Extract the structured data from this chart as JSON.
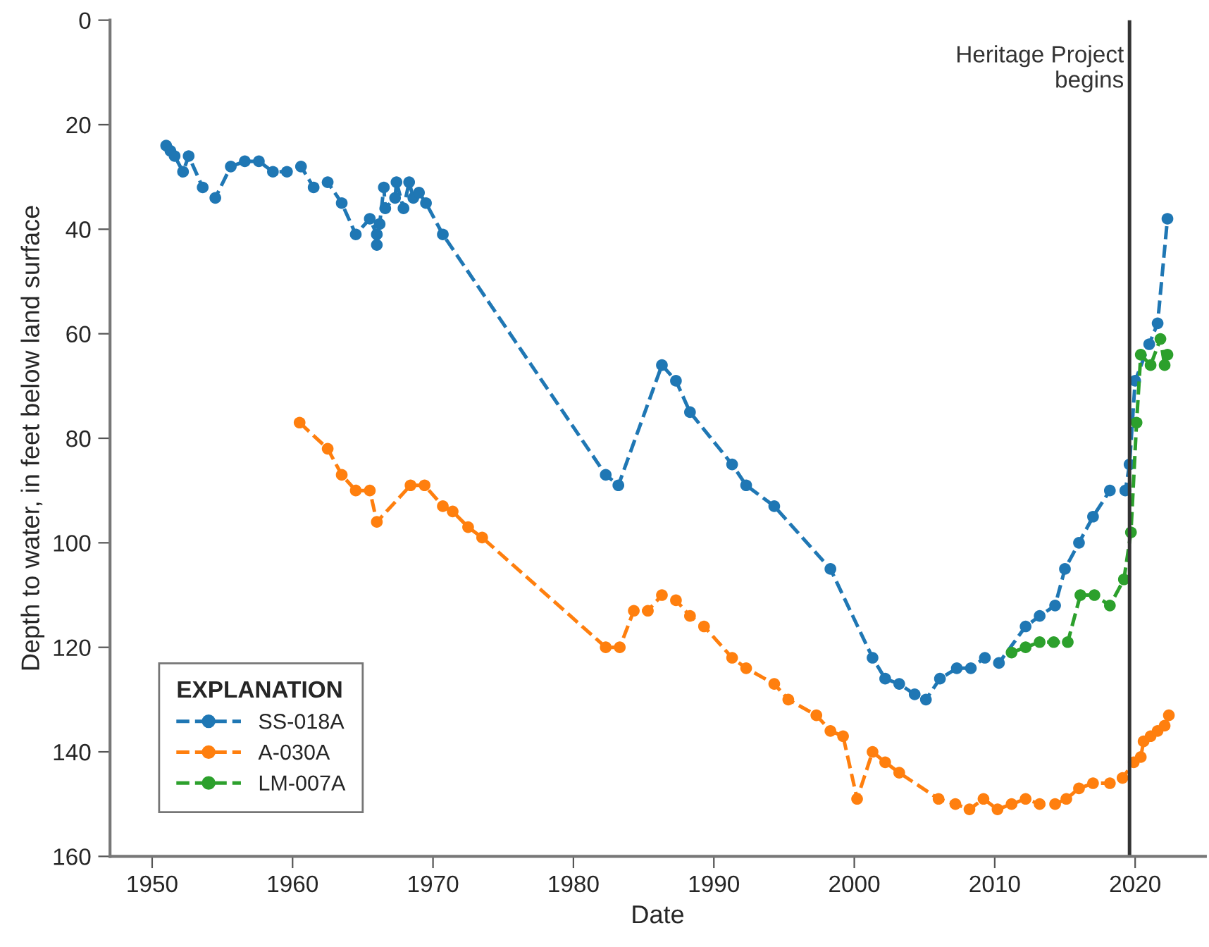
{
  "chart_data": {
    "type": "line",
    "xlabel": "Date",
    "ylabel": "Depth to water, in feet below land surface",
    "legend_title": "EXPLANATION",
    "legend": "bottom left",
    "grid": false,
    "marker": "circle",
    "line_style": "dashed",
    "xlim": [
      1947,
      2025
    ],
    "xticks": [
      1950,
      1960,
      1970,
      1980,
      1990,
      2000,
      2010,
      2020
    ],
    "ylim": [
      160,
      0
    ],
    "yticks": [
      0,
      20,
      40,
      60,
      80,
      100,
      120,
      140,
      160
    ],
    "ref_lines": [
      {
        "axis": "x",
        "value": 2019.6,
        "label": "Heritage Project\nbegins",
        "color": "#333333",
        "line_style": "solid"
      }
    ],
    "series": [
      {
        "name": "SS-018A",
        "color": "#1f77b4",
        "x": [
          1951.0,
          1951.3,
          1951.6,
          1952.2,
          1952.6,
          1953.6,
          1954.5,
          1955.6,
          1956.6,
          1957.6,
          1958.6,
          1959.6,
          1960.6,
          1961.5,
          1962.5,
          1963.5,
          1964.5,
          1965.5,
          1966.0,
          1966.0,
          1966.2,
          1966.5,
          1966.6,
          1967.3,
          1967.4,
          1967.9,
          1968.3,
          1968.6,
          1969.0,
          1969.5,
          1970.7,
          1982.3,
          1983.2,
          1986.3,
          1987.3,
          1988.3,
          1991.3,
          1992.3,
          1994.3,
          1998.3,
          2001.3,
          2002.2,
          2003.2,
          2004.3,
          2005.1,
          2006.1,
          2007.3,
          2008.3,
          2009.3,
          2010.3,
          2012.2,
          2013.2,
          2014.3,
          2015.0,
          2016.0,
          2017.0,
          2018.2,
          2019.3,
          2019.6,
          2020.0,
          2021.0,
          2021.6,
          2022.3
        ],
        "values": [
          24,
          25,
          26,
          29,
          26,
          32,
          34,
          28,
          27,
          27,
          29,
          29,
          28,
          32,
          31,
          35,
          41,
          38,
          41,
          43,
          39,
          32,
          36,
          34,
          31,
          36,
          31,
          34,
          33,
          35,
          41,
          87,
          89,
          66,
          69,
          75,
          85,
          89,
          93,
          105,
          122,
          126,
          127,
          129,
          130,
          126,
          124,
          124,
          122,
          123,
          116,
          114,
          112,
          105,
          100,
          95,
          90,
          90,
          85,
          69,
          62,
          58,
          38
        ]
      },
      {
        "name": "A-030A",
        "color": "#ff7f0e",
        "x": [
          1960.5,
          1962.5,
          1963.5,
          1964.5,
          1965.5,
          1966.0,
          1968.4,
          1969.4,
          1970.7,
          1971.4,
          1972.5,
          1973.5,
          1982.3,
          1983.3,
          1984.3,
          1985.3,
          1986.3,
          1987.3,
          1988.3,
          1989.3,
          1991.3,
          1992.3,
          1994.3,
          1995.3,
          1997.3,
          1998.3,
          1999.2,
          2000.2,
          2001.3,
          2002.2,
          2003.2,
          2006.0,
          2007.2,
          2008.2,
          2009.2,
          2010.2,
          2011.2,
          2012.2,
          2013.2,
          2014.3,
          2015.1,
          2016.0,
          2017.0,
          2018.2,
          2019.1,
          2019.9,
          2020.4,
          2020.6,
          2021.1,
          2021.6,
          2022.1,
          2022.4
        ],
        "values": [
          77,
          82,
          87,
          90,
          90,
          96,
          89,
          89,
          93,
          94,
          97,
          99,
          120,
          120,
          113,
          113,
          110,
          111,
          114,
          116,
          122,
          124,
          127,
          130,
          133,
          136,
          137,
          149,
          140,
          142,
          144,
          149,
          150,
          151,
          149,
          151,
          150,
          149,
          150,
          150,
          149,
          147,
          146,
          146,
          145,
          142,
          141,
          138,
          137,
          136,
          135,
          133
        ]
      },
      {
        "name": "LM-007A",
        "color": "#2ca02c",
        "x": [
          2011.2,
          2012.2,
          2013.2,
          2014.2,
          2015.2,
          2016.1,
          2017.1,
          2018.2,
          2019.2,
          2019.7,
          2020.1,
          2020.4,
          2021.1,
          2021.8,
          2022.1,
          2022.3
        ],
        "values": [
          121,
          120,
          119,
          119,
          119,
          110,
          110,
          112,
          107,
          98,
          77,
          64,
          66,
          61,
          66,
          64
        ]
      }
    ]
  }
}
